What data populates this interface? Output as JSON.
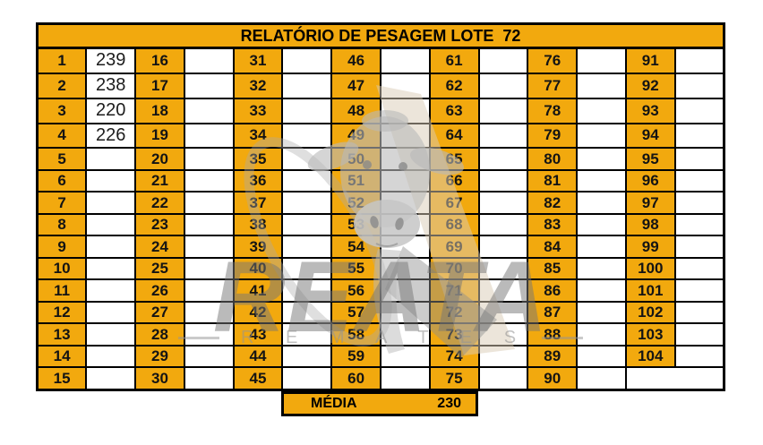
{
  "header": {
    "title": "RELATÓRIO DE PESAGEM LOTE  72"
  },
  "colors": {
    "cell_orange": "#F2A90E",
    "table_border": "#000000",
    "value_text": "#1C1C1C",
    "watermark_gray": "#8F8F8F",
    "watermark_beige": "#D9CCB6"
  },
  "table": {
    "rows": [
      [
        {
          "n": "1",
          "v": "239"
        },
        {
          "n": "16",
          "v": ""
        },
        {
          "n": "31",
          "v": ""
        },
        {
          "n": "46",
          "v": ""
        },
        {
          "n": "61",
          "v": ""
        },
        {
          "n": "76",
          "v": ""
        },
        {
          "n": "91",
          "v": ""
        }
      ],
      [
        {
          "n": "2",
          "v": "238"
        },
        {
          "n": "17",
          "v": ""
        },
        {
          "n": "32",
          "v": ""
        },
        {
          "n": "47",
          "v": ""
        },
        {
          "n": "62",
          "v": ""
        },
        {
          "n": "77",
          "v": ""
        },
        {
          "n": "92",
          "v": ""
        }
      ],
      [
        {
          "n": "3",
          "v": "220"
        },
        {
          "n": "18",
          "v": ""
        },
        {
          "n": "33",
          "v": ""
        },
        {
          "n": "48",
          "v": ""
        },
        {
          "n": "63",
          "v": ""
        },
        {
          "n": "78",
          "v": ""
        },
        {
          "n": "93",
          "v": ""
        }
      ],
      [
        {
          "n": "4",
          "v": "226"
        },
        {
          "n": "19",
          "v": ""
        },
        {
          "n": "34",
          "v": ""
        },
        {
          "n": "49",
          "v": ""
        },
        {
          "n": "64",
          "v": ""
        },
        {
          "n": "79",
          "v": ""
        },
        {
          "n": "94",
          "v": ""
        }
      ],
      [
        {
          "n": "5",
          "v": ""
        },
        {
          "n": "20",
          "v": ""
        },
        {
          "n": "35",
          "v": ""
        },
        {
          "n": "50",
          "v": ""
        },
        {
          "n": "65",
          "v": ""
        },
        {
          "n": "80",
          "v": ""
        },
        {
          "n": "95",
          "v": ""
        }
      ],
      [
        {
          "n": "6",
          "v": ""
        },
        {
          "n": "21",
          "v": ""
        },
        {
          "n": "36",
          "v": ""
        },
        {
          "n": "51",
          "v": ""
        },
        {
          "n": "66",
          "v": ""
        },
        {
          "n": "81",
          "v": ""
        },
        {
          "n": "96",
          "v": ""
        }
      ],
      [
        {
          "n": "7",
          "v": ""
        },
        {
          "n": "22",
          "v": ""
        },
        {
          "n": "37",
          "v": ""
        },
        {
          "n": "52",
          "v": ""
        },
        {
          "n": "67",
          "v": ""
        },
        {
          "n": "82",
          "v": ""
        },
        {
          "n": "97",
          "v": ""
        }
      ],
      [
        {
          "n": "8",
          "v": ""
        },
        {
          "n": "23",
          "v": ""
        },
        {
          "n": "38",
          "v": ""
        },
        {
          "n": "53",
          "v": ""
        },
        {
          "n": "68",
          "v": ""
        },
        {
          "n": "83",
          "v": ""
        },
        {
          "n": "98",
          "v": ""
        }
      ],
      [
        {
          "n": "9",
          "v": ""
        },
        {
          "n": "24",
          "v": ""
        },
        {
          "n": "39",
          "v": ""
        },
        {
          "n": "54",
          "v": ""
        },
        {
          "n": "69",
          "v": ""
        },
        {
          "n": "84",
          "v": ""
        },
        {
          "n": "99",
          "v": ""
        }
      ],
      [
        {
          "n": "10",
          "v": ""
        },
        {
          "n": "25",
          "v": ""
        },
        {
          "n": "40",
          "v": ""
        },
        {
          "n": "55",
          "v": ""
        },
        {
          "n": "70",
          "v": ""
        },
        {
          "n": "85",
          "v": ""
        },
        {
          "n": "100",
          "v": ""
        }
      ],
      [
        {
          "n": "11",
          "v": ""
        },
        {
          "n": "26",
          "v": ""
        },
        {
          "n": "41",
          "v": ""
        },
        {
          "n": "56",
          "v": ""
        },
        {
          "n": "71",
          "v": ""
        },
        {
          "n": "86",
          "v": ""
        },
        {
          "n": "101",
          "v": ""
        }
      ],
      [
        {
          "n": "12",
          "v": ""
        },
        {
          "n": "27",
          "v": ""
        },
        {
          "n": "42",
          "v": ""
        },
        {
          "n": "57",
          "v": ""
        },
        {
          "n": "72",
          "v": ""
        },
        {
          "n": "87",
          "v": ""
        },
        {
          "n": "102",
          "v": ""
        }
      ],
      [
        {
          "n": "13",
          "v": ""
        },
        {
          "n": "28",
          "v": ""
        },
        {
          "n": "43",
          "v": ""
        },
        {
          "n": "58",
          "v": ""
        },
        {
          "n": "73",
          "v": ""
        },
        {
          "n": "88",
          "v": ""
        },
        {
          "n": "103",
          "v": ""
        }
      ],
      [
        {
          "n": "14",
          "v": ""
        },
        {
          "n": "29",
          "v": ""
        },
        {
          "n": "44",
          "v": ""
        },
        {
          "n": "59",
          "v": ""
        },
        {
          "n": "74",
          "v": ""
        },
        {
          "n": "89",
          "v": ""
        },
        {
          "n": "104",
          "v": ""
        }
      ],
      [
        {
          "n": "15",
          "v": ""
        },
        {
          "n": "30",
          "v": ""
        },
        {
          "n": "45",
          "v": ""
        },
        {
          "n": "60",
          "v": ""
        },
        {
          "n": "75",
          "v": ""
        },
        {
          "n": "90",
          "v": ""
        }
      ]
    ]
  },
  "footer": {
    "media_label": "MÉDIA",
    "media_value": "230"
  },
  "watermark": {
    "brand": "REATA",
    "sub": "R E M A T E S"
  }
}
